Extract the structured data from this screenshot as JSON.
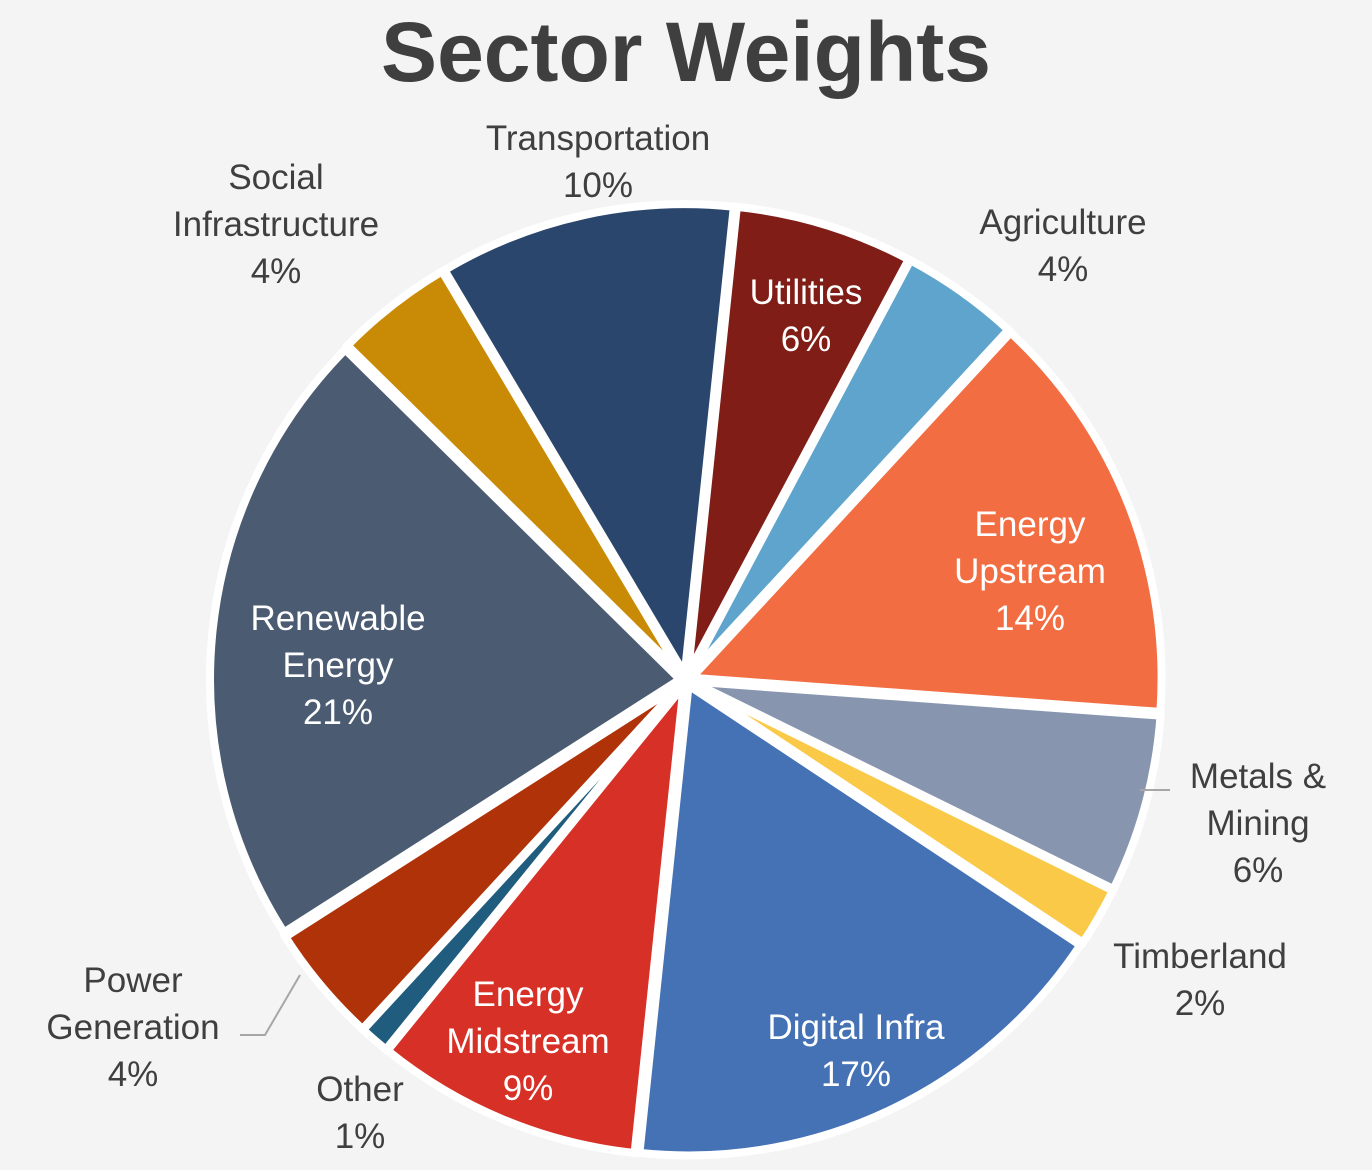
{
  "chart_data": {
    "type": "pie",
    "title": "Sector Weights",
    "slices": [
      {
        "name": "Utilities",
        "value": 6,
        "label_lines": [
          "Utilities",
          "6%"
        ],
        "color": "#7f1d16",
        "label_inside": true
      },
      {
        "name": "Agriculture",
        "value": 4,
        "label_lines": [
          "Agriculture",
          "4%"
        ],
        "color": "#5fa4cc",
        "label_inside": false
      },
      {
        "name": "Energy Upstream",
        "value": 14,
        "label_lines": [
          "Energy",
          "Upstream",
          "14%"
        ],
        "color": "#f26d42",
        "label_inside": true
      },
      {
        "name": "Metals & Mining",
        "value": 6,
        "label_lines": [
          "Metals &",
          "Mining",
          "6%"
        ],
        "color": "#8796ae",
        "label_inside": false
      },
      {
        "name": "Timberland",
        "value": 2,
        "label_lines": [
          "Timberland",
          "2%"
        ],
        "color": "#f9c947",
        "label_inside": false
      },
      {
        "name": "Digital Infra",
        "value": 17,
        "label_lines": [
          "Digital Infra",
          "17%"
        ],
        "color": "#4472b4",
        "label_inside": true
      },
      {
        "name": "Energy Midstream",
        "value": 9,
        "label_lines": [
          "Energy",
          "Midstream",
          "9%"
        ],
        "color": "#d63027",
        "label_inside": true
      },
      {
        "name": "Other",
        "value": 1,
        "label_lines": [
          "Other",
          "1%"
        ],
        "color": "#1f5c7e",
        "label_inside": false
      },
      {
        "name": "Power Generation",
        "value": 4,
        "label_lines": [
          "Power",
          "Generation",
          "4%"
        ],
        "color": "#b03209",
        "label_inside": false
      },
      {
        "name": "Renewable Energy",
        "value": 21,
        "label_lines": [
          "Renewable",
          "Energy",
          "21%"
        ],
        "color": "#4b5b72",
        "label_inside": true
      },
      {
        "name": "Social Infrastructure",
        "value": 4,
        "label_lines": [
          "Social",
          "Infrastructure",
          "4%"
        ],
        "color": "#c98b06",
        "label_inside": false
      },
      {
        "name": "Transportation",
        "value": 10,
        "label_lines": [
          "Transportation",
          "10%"
        ],
        "color": "#2a466c",
        "label_inside": false
      }
    ],
    "legend": "none"
  }
}
